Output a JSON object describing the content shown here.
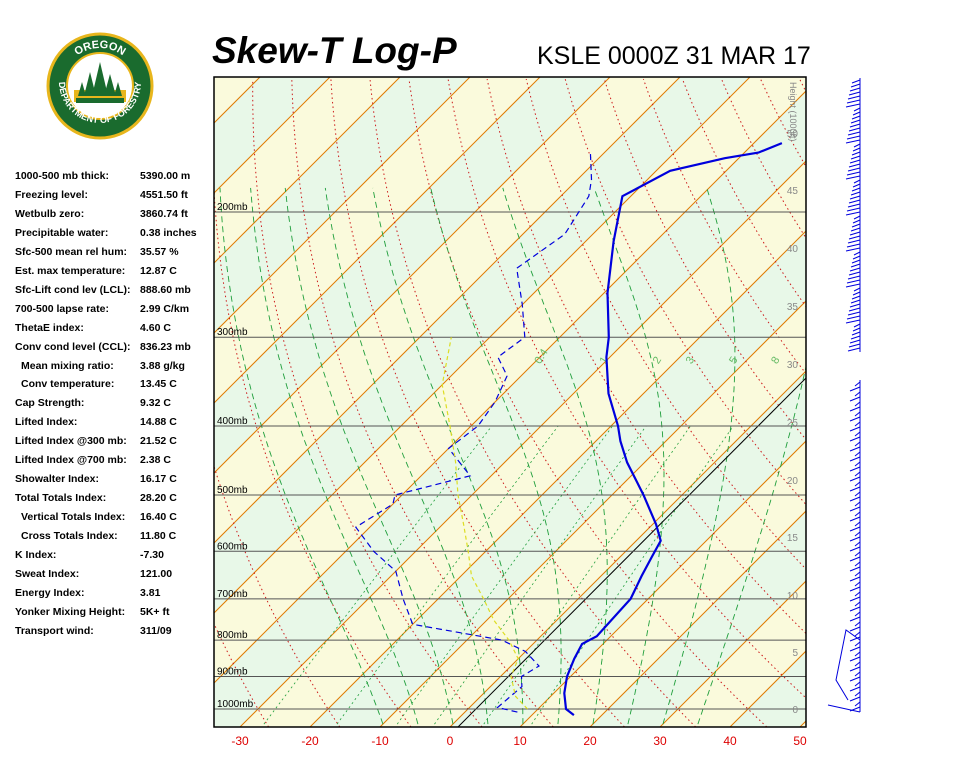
{
  "header": {
    "title": "Skew-T Log-P",
    "station": "KSLE 0000Z 31 MAR 17"
  },
  "logo": {
    "top_text": "OREGON",
    "ring_text": "DEPARTMENT OF FORESTRY",
    "ring_color": "#1a6b2e",
    "accent_color": "#e8b61c"
  },
  "indices": [
    {
      "label": "1000-500 mb thick:",
      "value": "5390.00 m",
      "indent": false
    },
    {
      "label": "Freezing level:",
      "value": "4551.50 ft",
      "indent": false
    },
    {
      "label": "Wetbulb zero:",
      "value": "3860.74 ft",
      "indent": false
    },
    {
      "label": "Precipitable water:",
      "value": "0.38 inches",
      "indent": false
    },
    {
      "label": "Sfc-500 mean rel hum:",
      "value": "35.57 %",
      "indent": false
    },
    {
      "label": "Est. max temperature:",
      "value": "12.87 C",
      "indent": false
    },
    {
      "label": "Sfc-Lift cond lev (LCL):",
      "value": "888.60 mb",
      "indent": false
    },
    {
      "label": "700-500 lapse rate:",
      "value": "2.99 C/km",
      "indent": false
    },
    {
      "label": "ThetaE index:",
      "value": "4.60 C",
      "indent": false
    },
    {
      "label": "Conv cond level (CCL):",
      "value": "836.23 mb",
      "indent": false
    },
    {
      "label": "Mean mixing ratio:",
      "value": "3.88 g/kg",
      "indent": true
    },
    {
      "label": "Conv temperature:",
      "value": "13.45 C",
      "indent": true
    },
    {
      "label": "Cap Strength:",
      "value": "9.32 C",
      "indent": false
    },
    {
      "label": "Lifted Index:",
      "value": "14.88 C",
      "indent": false
    },
    {
      "label": "Lifted Index @300 mb:",
      "value": "21.52 C",
      "indent": false
    },
    {
      "label": "Lifted Index @700 mb:",
      "value": "2.38 C",
      "indent": false
    },
    {
      "label": "Showalter Index:",
      "value": "16.17 C",
      "indent": false
    },
    {
      "label": "Total Totals Index:",
      "value": "28.20 C",
      "indent": false
    },
    {
      "label": "Vertical Totals Index:",
      "value": "16.40 C",
      "indent": true
    },
    {
      "label": "Cross Totals Index:",
      "value": "11.80 C",
      "indent": true
    },
    {
      "label": "K Index:",
      "value": "-7.30",
      "indent": false
    },
    {
      "label": "Sweat Index:",
      "value": "121.00",
      "indent": false
    },
    {
      "label": "Energy Index:",
      "value": "3.81",
      "indent": false
    },
    {
      "label": "Yonker Mixing Height:",
      "value": "5K+ ft",
      "indent": false
    },
    {
      "label": "Transport wind:",
      "value": "311/09",
      "indent": false
    }
  ],
  "chart_data": {
    "type": "line",
    "title": "Skew-T Log-P",
    "x_ticks": [
      "-30",
      "-20",
      "-10",
      "0",
      "10",
      "20",
      "30",
      "40",
      "50"
    ],
    "xlim": [
      -33,
      50
    ],
    "pressure_levels": [
      {
        "p": 200,
        "label": "200mb"
      },
      {
        "p": 300,
        "label": "300mb"
      },
      {
        "p": 400,
        "label": "400mb"
      },
      {
        "p": 500,
        "label": "500mb"
      },
      {
        "p": 600,
        "label": "600mb"
      },
      {
        "p": 700,
        "label": "700mb"
      },
      {
        "p": 800,
        "label": "800mb"
      },
      {
        "p": 900,
        "label": "900mb"
      },
      {
        "p": 1000,
        "label": "1000mb"
      }
    ],
    "height_axis": {
      "label": "Height (1000ft)",
      "ticks": [
        "0",
        "5",
        "10",
        "15",
        "20",
        "25",
        "30",
        "35",
        "40",
        "45",
        "50"
      ]
    },
    "mixing_ratio_labels": [
      {
        "w": 0.4,
        "label": "0.4"
      },
      {
        "w": 1,
        "label": "1"
      },
      {
        "w": 2,
        "label": "2"
      },
      {
        "w": 3,
        "label": "3"
      },
      {
        "w": 5,
        "label": "5"
      },
      {
        "w": 8,
        "label": "8"
      }
    ],
    "series": [
      {
        "name": "",
        "kind": "temperature",
        "color": "#0000dd",
        "points": [
          [
            1020,
            16
          ],
          [
            1000,
            14
          ],
          [
            950,
            11.5
          ],
          [
            900,
            9.5
          ],
          [
            850,
            8
          ],
          [
            810,
            7
          ],
          [
            790,
            8
          ],
          [
            700,
            7.5
          ],
          [
            650,
            5.8
          ],
          [
            610,
            4.5
          ],
          [
            580,
            3.5
          ],
          [
            550,
            0.5
          ],
          [
            500,
            -5.5
          ],
          [
            450,
            -12.5
          ],
          [
            420,
            -16.5
          ],
          [
            400,
            -19
          ],
          [
            360,
            -25
          ],
          [
            320,
            -30.5
          ],
          [
            300,
            -33
          ],
          [
            260,
            -39.5
          ],
          [
            220,
            -46
          ],
          [
            190,
            -51.2
          ],
          [
            175,
            -48
          ],
          [
            168,
            -42
          ],
          [
            165,
            -38
          ],
          [
            160,
            -36
          ]
        ]
      },
      {
        "name": "",
        "kind": "dewpoint",
        "color": "#0000dd",
        "points": [
          [
            1010,
            7.5
          ],
          [
            995,
            4
          ],
          [
            930,
            4.5
          ],
          [
            900,
            3
          ],
          [
            870,
            4
          ],
          [
            830,
            0
          ],
          [
            800,
            -5
          ],
          [
            760,
            -20
          ],
          [
            700,
            -25
          ],
          [
            640,
            -30
          ],
          [
            600,
            -36
          ],
          [
            555,
            -42
          ],
          [
            515,
            -40
          ],
          [
            500,
            -41
          ],
          [
            470,
            -33
          ],
          [
            430,
            -40
          ],
          [
            400,
            -39
          ],
          [
            370,
            -40
          ],
          [
            340,
            -42
          ],
          [
            320,
            -46
          ],
          [
            300,
            -45
          ],
          [
            270,
            -50
          ],
          [
            240,
            -56
          ],
          [
            215,
            -54
          ],
          [
            190,
            -56
          ],
          [
            180,
            -58
          ],
          [
            165,
            -62
          ]
        ]
      },
      {
        "name": "",
        "kind": "parcel",
        "color": "#dddd22",
        "points": [
          [
            1000,
            8.5
          ],
          [
            960,
            5
          ],
          [
            900,
            1.5
          ],
          [
            850,
            0
          ],
          [
            800,
            -4
          ],
          [
            750,
            -9
          ],
          [
            700,
            -13.5
          ],
          [
            650,
            -18.5
          ],
          [
            600,
            -22.5
          ],
          [
            550,
            -27
          ],
          [
            500,
            -32
          ],
          [
            450,
            -37
          ],
          [
            400,
            -43
          ],
          [
            350,
            -50
          ],
          [
            300,
            -55.5
          ]
        ]
      }
    ],
    "wind_profile": "wind barbs along right edge, surface to ~50000 ft",
    "colors": {
      "temperature_isotherm": "#e07a00",
      "dry_adiabat": "#cc1a1a",
      "moist_adiabat": "#1f9e3b",
      "mixing_ratio": "#1f9e3b",
      "pressure_line": "#555555",
      "band_green": "#e8f8e8",
      "band_yellow": "#fafadc",
      "trace": "#0000dd",
      "parcel": "#dddd22",
      "tick_label_red": "#dd0000"
    }
  }
}
